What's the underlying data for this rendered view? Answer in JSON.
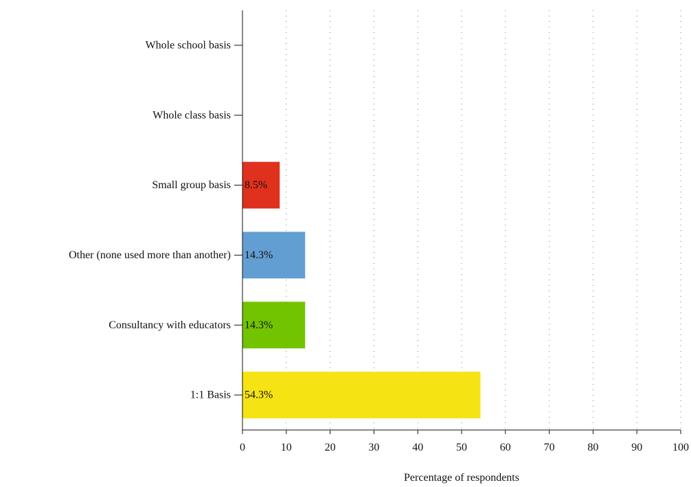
{
  "chart_data": {
    "type": "bar",
    "orientation": "horizontal",
    "categories": [
      "Whole school basis",
      "Whole class basis",
      "Small group basis",
      "Other (none used more than another)",
      "Consultancy with educators",
      "1:1 Basis"
    ],
    "values": [
      0,
      0,
      8.5,
      14.3,
      14.3,
      54.3
    ],
    "value_labels": [
      "",
      "",
      "8.5%",
      "14.3%",
      "14.3%",
      "54.3%"
    ],
    "colors": [
      "#ffffff",
      "#ffffff",
      "#e0301e",
      "#639ed2",
      "#72c400",
      "#f5e314"
    ],
    "title": "",
    "xlabel": "Percentage of respondents",
    "ylabel": "",
    "xlim": [
      0,
      100
    ],
    "xticks": [
      0,
      10,
      20,
      30,
      40,
      50,
      60,
      70,
      80,
      90,
      100
    ],
    "xtick_labels": [
      "0",
      "10",
      "20",
      "30",
      "40",
      "50",
      "60",
      "70",
      "80",
      "90",
      "100"
    ],
    "grid": "vertical dotted",
    "legend": "none"
  }
}
